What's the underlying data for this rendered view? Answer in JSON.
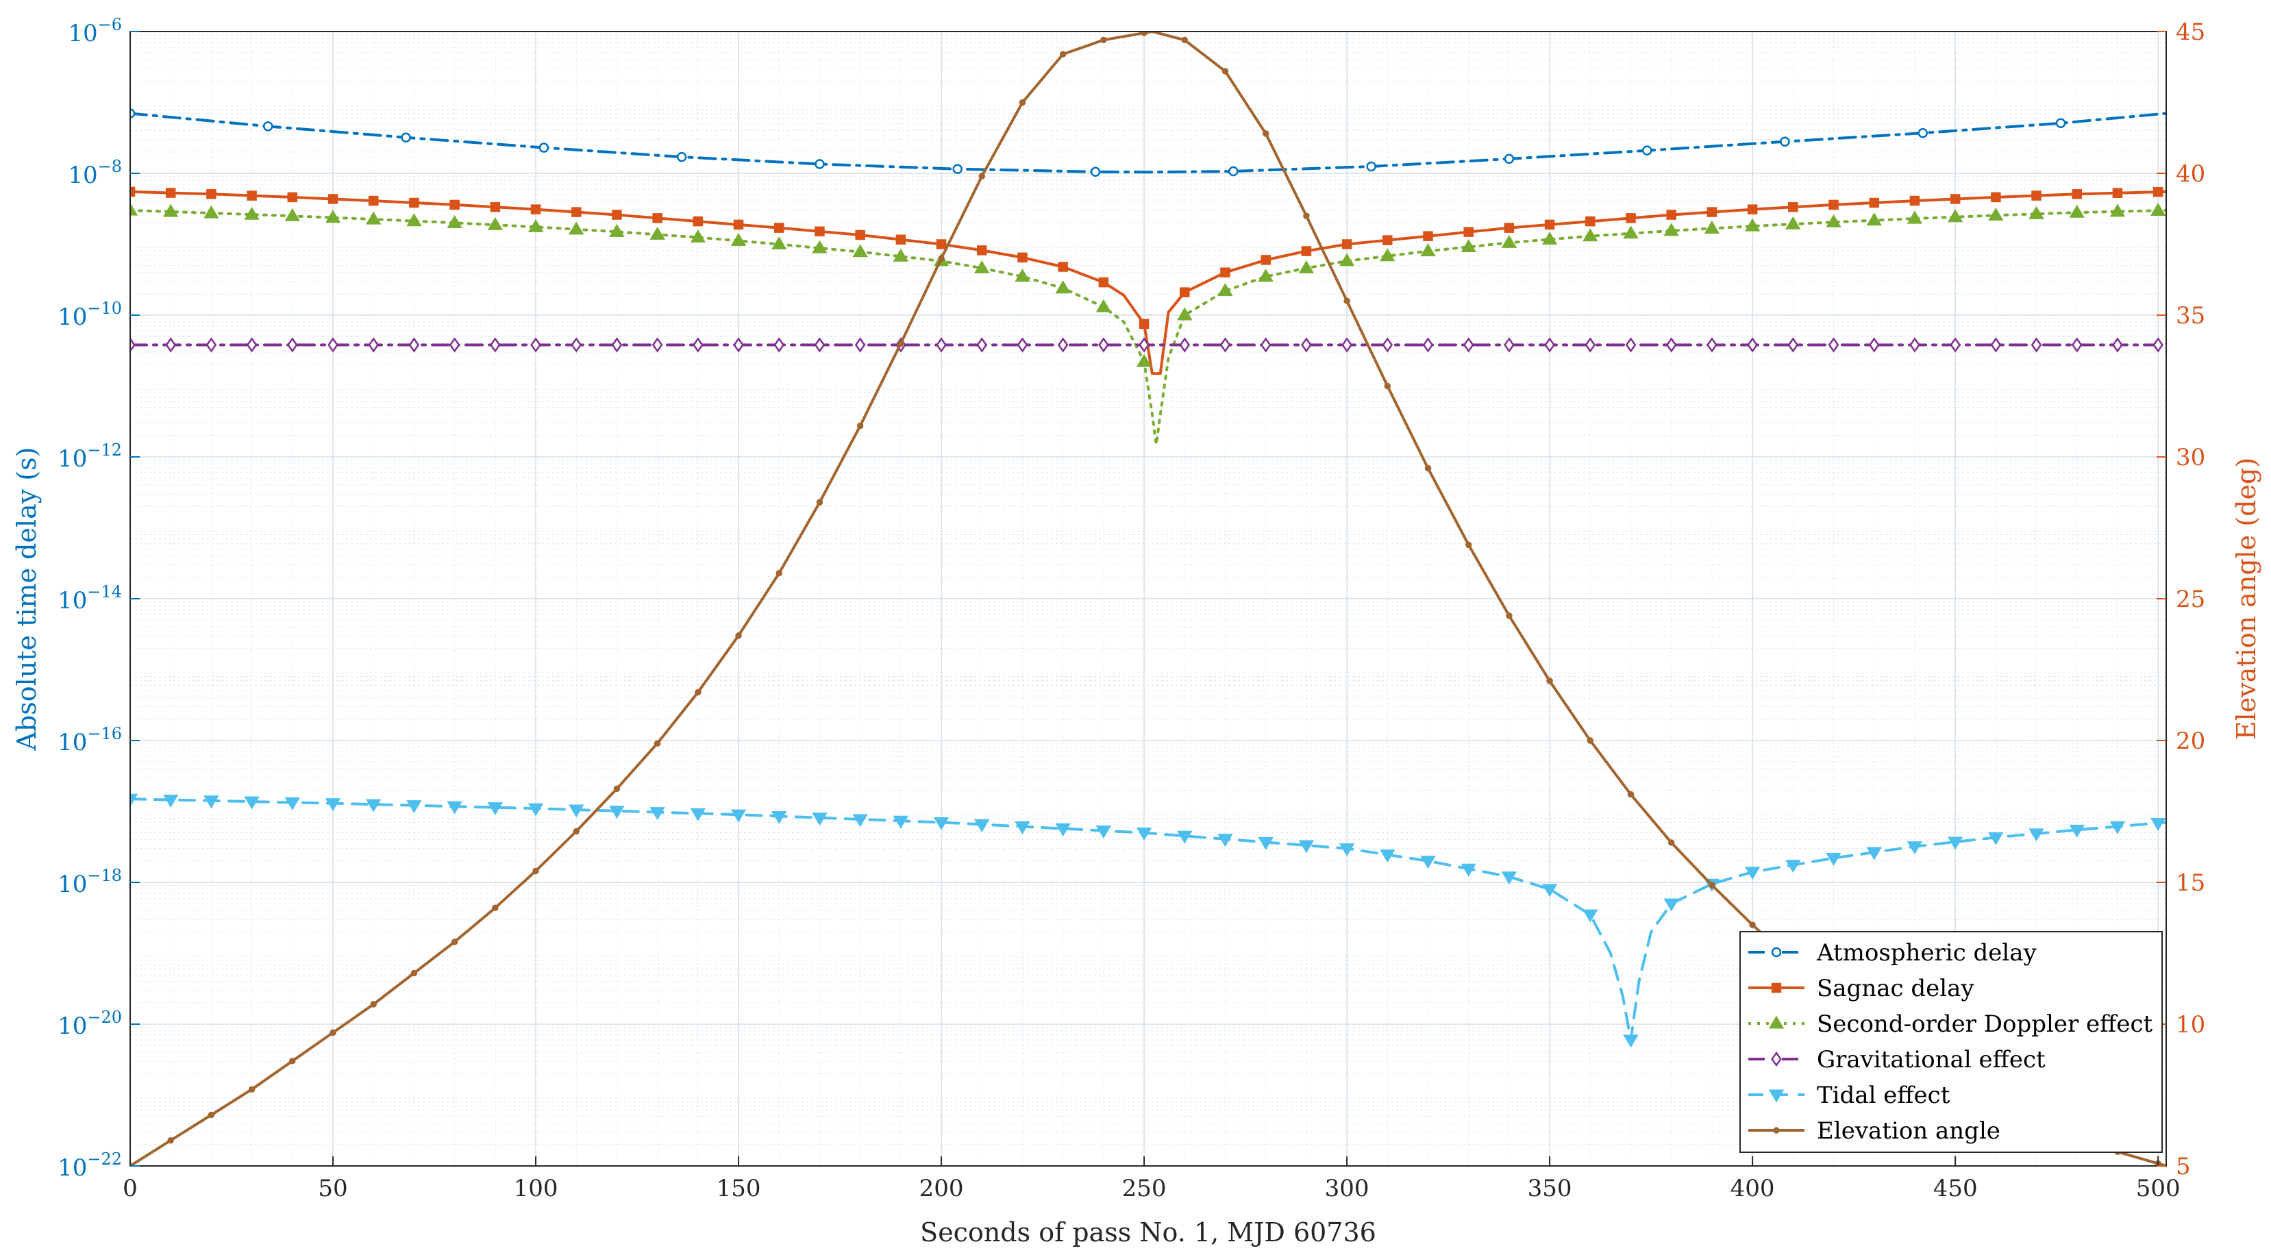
{
  "chart_data": {
    "type": "line",
    "xlabel": "Seconds of pass No. 1, MJD 60736",
    "ylabel_left": "Absolute time delay (s)",
    "ylabel_right": "Elevation angle (deg)",
    "xlim": [
      0,
      502
    ],
    "ylim_left": [
      1e-22,
      1e-06
    ],
    "yscale_left": "log",
    "ylim_right": [
      5,
      45
    ],
    "grid": true,
    "legend_position": "bottom-right",
    "x_ticks": [
      "0",
      "50",
      "100",
      "150",
      "200",
      "250",
      "300",
      "350",
      "400",
      "450",
      "500"
    ],
    "left_tick_exponents": [
      "-22",
      "-20",
      "-18",
      "-16",
      "-14",
      "-12",
      "-10",
      "-8",
      "-6"
    ],
    "right_ticks": [
      "5",
      "10",
      "15",
      "20",
      "25",
      "30",
      "35",
      "40",
      "45"
    ],
    "colors": {
      "left_axis": "#0072BD",
      "right_axis": "#D95319",
      "atmospheric": "#0072BD",
      "sagnac": "#D95319",
      "doppler": "#77AC30",
      "gravitational": "#7E2F8E",
      "tidal": "#4DBEEE",
      "elevation": "#A2652F"
    },
    "series": [
      {
        "name": "Atmospheric delay",
        "key": "atmospheric",
        "axis": "left",
        "style": "dash-dot",
        "marker": "circle",
        "x": [
          0,
          34,
          68,
          102,
          136,
          170,
          204,
          238,
          252,
          272,
          306,
          340,
          374,
          408,
          442,
          476,
          502
        ],
        "y": [
          7e-08,
          4.6e-08,
          3.2e-08,
          2.3e-08,
          1.7e-08,
          1.35e-08,
          1.15e-08,
          1.05e-08,
          1.04e-08,
          1.07e-08,
          1.25e-08,
          1.6e-08,
          2.1e-08,
          2.8e-08,
          3.7e-08,
          5.1e-08,
          7e-08
        ]
      },
      {
        "name": "Sagnac delay",
        "key": "sagnac",
        "axis": "left",
        "style": "solid",
        "marker": "square",
        "x": [
          0,
          20,
          40,
          60,
          80,
          100,
          120,
          140,
          160,
          180,
          200,
          210,
          220,
          230,
          240,
          245,
          250,
          252,
          254,
          256,
          260,
          270,
          280,
          290,
          300,
          320,
          340,
          360,
          380,
          400,
          420,
          440,
          460,
          480,
          502
        ],
        "y": [
          5.5e-09,
          5.1e-09,
          4.6e-09,
          4.1e-09,
          3.6e-09,
          3.1e-09,
          2.6e-09,
          2.1e-09,
          1.7e-09,
          1.35e-09,
          1e-09,
          8.2e-10,
          6.5e-10,
          4.8e-10,
          2.9e-10,
          1.9e-10,
          7.5e-11,
          1.5e-11,
          1.5e-11,
          1.1e-10,
          2.1e-10,
          4e-10,
          6e-10,
          8e-10,
          1e-09,
          1.3e-09,
          1.7e-09,
          2.1e-09,
          2.6e-09,
          3.1e-09,
          3.6e-09,
          4.1e-09,
          4.6e-09,
          5.1e-09,
          5.5e-09
        ]
      },
      {
        "name": "Second-order Doppler effect",
        "key": "doppler",
        "axis": "left",
        "style": "dotted",
        "marker": "triangle-up",
        "x": [
          0,
          20,
          40,
          60,
          80,
          100,
          120,
          140,
          160,
          180,
          200,
          210,
          220,
          230,
          240,
          245,
          250,
          252,
          253,
          254,
          256,
          260,
          270,
          280,
          290,
          300,
          320,
          340,
          360,
          380,
          400,
          420,
          440,
          460,
          480,
          502
        ],
        "y": [
          3e-09,
          2.75e-09,
          2.5e-09,
          2.25e-09,
          2e-09,
          1.75e-09,
          1.5e-09,
          1.25e-09,
          1e-09,
          7.8e-10,
          5.8e-10,
          4.6e-10,
          3.5e-10,
          2.4e-10,
          1.3e-10,
          8e-11,
          2.2e-11,
          4e-12,
          1.5e-12,
          4e-12,
          2.5e-11,
          1e-10,
          2.2e-10,
          3.5e-10,
          4.6e-10,
          5.8e-10,
          8e-10,
          1.05e-09,
          1.3e-09,
          1.55e-09,
          1.8e-09,
          2.05e-09,
          2.3e-09,
          2.55e-09,
          2.8e-09,
          3e-09
        ]
      },
      {
        "name": "Gravitational effect",
        "key": "gravitational",
        "axis": "left",
        "style": "dash-dot",
        "marker": "diamond",
        "x": [
          0,
          502
        ],
        "y": [
          3.8e-11,
          3.8e-11
        ]
      },
      {
        "name": "Tidal effect",
        "key": "tidal",
        "axis": "left",
        "style": "dashed",
        "marker": "triangle-down",
        "x": [
          0,
          50,
          100,
          150,
          200,
          250,
          300,
          320,
          340,
          350,
          360,
          365,
          368,
          370,
          372,
          375,
          380,
          390,
          400,
          420,
          440,
          460,
          480,
          502
        ],
        "y": [
          1.5e-17,
          1.3e-17,
          1.1e-17,
          9e-18,
          7e-18,
          5e-18,
          3e-18,
          2e-18,
          1.2e-18,
          8e-19,
          3.5e-19,
          1e-19,
          2.5e-20,
          6e-21,
          4e-20,
          2e-19,
          5e-19,
          9.5e-19,
          1.4e-18,
          2.2e-18,
          3.2e-18,
          4.3e-18,
          5.5e-18,
          7e-18
        ]
      },
      {
        "name": "Elevation angle",
        "key": "elevation",
        "axis": "right",
        "style": "solid",
        "marker": "dot",
        "x": [
          0,
          10,
          20,
          30,
          40,
          50,
          60,
          70,
          80,
          90,
          100,
          110,
          120,
          130,
          140,
          150,
          160,
          170,
          180,
          190,
          200,
          210,
          220,
          230,
          240,
          252,
          260,
          270,
          280,
          290,
          300,
          310,
          320,
          330,
          340,
          350,
          360,
          370,
          380,
          390,
          400,
          410,
          420,
          430,
          440,
          450,
          460,
          470,
          480,
          490,
          502
        ],
        "y": [
          5.0,
          5.9,
          6.8,
          7.7,
          8.7,
          9.7,
          10.7,
          11.8,
          12.9,
          14.1,
          15.4,
          16.8,
          18.3,
          19.9,
          21.7,
          23.7,
          25.9,
          28.4,
          31.1,
          34.0,
          37.0,
          39.9,
          42.5,
          44.2,
          44.7,
          45.0,
          44.7,
          43.6,
          41.4,
          38.5,
          35.5,
          32.5,
          29.6,
          26.9,
          24.4,
          22.1,
          20.0,
          18.1,
          16.4,
          14.9,
          13.5,
          12.2,
          11.0,
          9.9,
          9.0,
          8.2,
          7.4,
          6.7,
          6.0,
          5.5,
          5.0
        ]
      }
    ]
  }
}
